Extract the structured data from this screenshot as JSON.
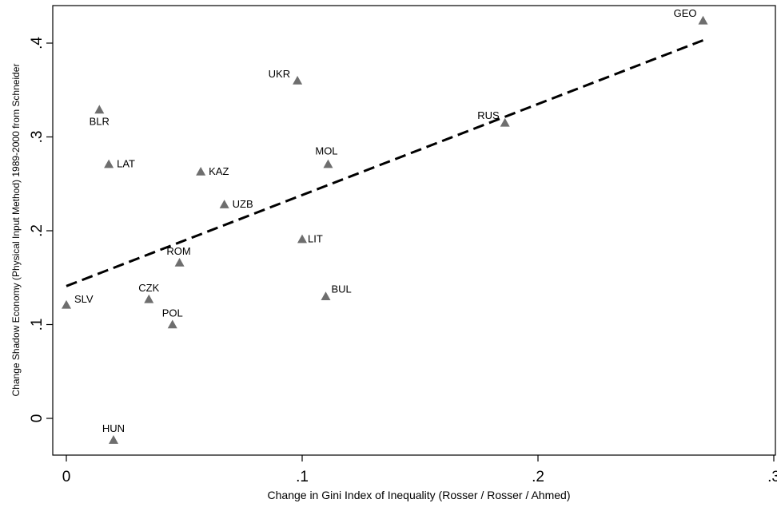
{
  "chart_data": {
    "type": "scatter",
    "title": "",
    "xlabel": "Change in Gini Index of Inequality (Rosser / Rosser / Ahmed)",
    "ylabel": "Change Shadow Economy (Physical Input Method) 1989-2000 from Schneider",
    "xlim": [
      0,
      0.3
    ],
    "ylim": [
      0,
      0.4
    ],
    "xticks": [
      0,
      0.1,
      0.2,
      0.3
    ],
    "xtick_labels": [
      "0",
      ".1",
      ".2",
      ".3"
    ],
    "yticks": [
      0,
      0.1,
      0.2,
      0.3,
      0.4
    ],
    "ytick_labels": [
      "0",
      ".1",
      ".2",
      ".3",
      ".4"
    ],
    "grid": false,
    "marker_color": "#6e6e6e",
    "fit_line_color": "#000000",
    "points": [
      {
        "label": "GEO",
        "x": 0.27,
        "y": 0.424
      },
      {
        "label": "UKR",
        "x": 0.098,
        "y": 0.36
      },
      {
        "label": "BLR",
        "x": 0.014,
        "y": 0.329
      },
      {
        "label": "RUS",
        "x": 0.186,
        "y": 0.315
      },
      {
        "label": "LAT",
        "x": 0.018,
        "y": 0.271
      },
      {
        "label": "MOL",
        "x": 0.111,
        "y": 0.271
      },
      {
        "label": "KAZ",
        "x": 0.057,
        "y": 0.263
      },
      {
        "label": "UZB",
        "x": 0.067,
        "y": 0.228
      },
      {
        "label": "LIT",
        "x": 0.1,
        "y": 0.191
      },
      {
        "label": "ROM",
        "x": 0.048,
        "y": 0.166
      },
      {
        "label": "BUL",
        "x": 0.11,
        "y": 0.13
      },
      {
        "label": "CZK",
        "x": 0.035,
        "y": 0.127
      },
      {
        "label": "SLV",
        "x": 0.0,
        "y": 0.121
      },
      {
        "label": "POL",
        "x": 0.045,
        "y": 0.1
      },
      {
        "label": "HUN",
        "x": 0.02,
        "y": -0.023
      }
    ],
    "fit_line": {
      "style": "dashed",
      "x": [
        0,
        0.27
      ],
      "y": [
        0.141,
        0.403
      ]
    }
  }
}
